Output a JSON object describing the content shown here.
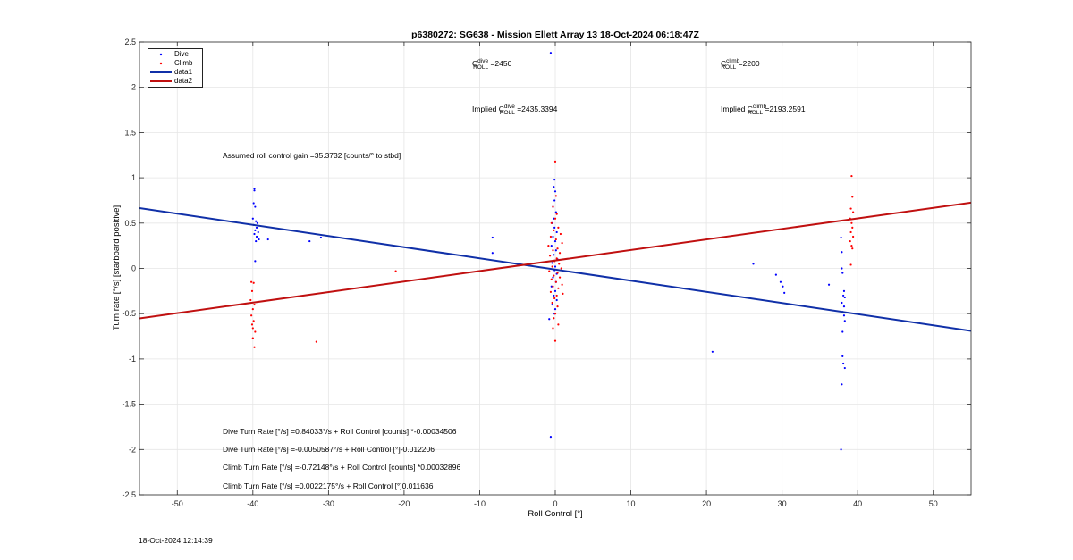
{
  "chart_data": {
    "type": "scatter",
    "title": "p6380272: SG638 - Mission Ellett Array 13 18-Oct-2024 06:18:47Z",
    "xlabel": "Roll Control [°]",
    "ylabel": "Turn rate [°/s] [starboard positive]",
    "xlim": [
      -55,
      55
    ],
    "ylim": [
      -2.5,
      2.5
    ],
    "xticks": [
      -50,
      -40,
      -30,
      -20,
      -10,
      0,
      10,
      20,
      30,
      40,
      50
    ],
    "yticks": [
      -2.5,
      -2,
      -1.5,
      -1,
      -0.5,
      0,
      0.5,
      1,
      1.5,
      2,
      2.5
    ],
    "grid": true,
    "legend_placement": "top-left",
    "legend": [
      "Dive",
      "Climb",
      "data1",
      "data2"
    ],
    "colors": {
      "dive": "#0000ff",
      "climb": "#ff0000",
      "data1": "#1030a8",
      "data2": "#c01010"
    },
    "series": [
      {
        "name": "Dive",
        "type": "scatter",
        "points": [
          [
            -39.8,
            0.88
          ],
          [
            -39.8,
            0.86
          ],
          [
            -39.9,
            0.72
          ],
          [
            -39.7,
            0.68
          ],
          [
            -40.0,
            0.55
          ],
          [
            -39.6,
            0.52
          ],
          [
            -39.4,
            0.5
          ],
          [
            -39.9,
            0.48
          ],
          [
            -39.5,
            0.45
          ],
          [
            -39.7,
            0.42
          ],
          [
            -39.3,
            0.4
          ],
          [
            -39.8,
            0.38
          ],
          [
            -39.5,
            0.35
          ],
          [
            -39.2,
            0.32
          ],
          [
            -39.6,
            0.3
          ],
          [
            -38.0,
            0.32
          ],
          [
            -39.7,
            0.08
          ],
          [
            -32.5,
            0.3
          ],
          [
            -31.0,
            0.34
          ],
          [
            -8.3,
            0.34
          ],
          [
            -8.3,
            0.17
          ],
          [
            -0.6,
            2.38
          ],
          [
            -0.1,
            0.98
          ],
          [
            -0.2,
            0.9
          ],
          [
            0.0,
            0.85
          ],
          [
            -0.1,
            0.75
          ],
          [
            -0.3,
            0.68
          ],
          [
            0.1,
            0.62
          ],
          [
            -0.2,
            0.55
          ],
          [
            -0.4,
            0.5
          ],
          [
            -0.1,
            0.45
          ],
          [
            0.2,
            0.4
          ],
          [
            -0.3,
            0.35
          ],
          [
            0.0,
            0.3
          ],
          [
            -0.5,
            0.25
          ],
          [
            0.1,
            0.2
          ],
          [
            -0.2,
            0.15
          ],
          [
            0.3,
            0.1
          ],
          [
            -0.4,
            0.06
          ],
          [
            0.0,
            0.02
          ],
          [
            -0.1,
            -0.02
          ],
          [
            0.2,
            -0.06
          ],
          [
            -0.3,
            -0.1
          ],
          [
            0.1,
            -0.15
          ],
          [
            -0.5,
            -0.2
          ],
          [
            0.0,
            -0.25
          ],
          [
            -0.2,
            -0.3
          ],
          [
            0.2,
            -0.35
          ],
          [
            -0.4,
            -0.4
          ],
          [
            0.0,
            -0.45
          ],
          [
            -0.1,
            -0.5
          ],
          [
            -0.8,
            -0.56
          ],
          [
            -0.6,
            -1.86
          ],
          [
            20.8,
            -0.92
          ],
          [
            26.2,
            0.05
          ],
          [
            29.2,
            -0.07
          ],
          [
            29.8,
            -0.15
          ],
          [
            30.1,
            -0.2
          ],
          [
            30.3,
            -0.27
          ],
          [
            36.2,
            -0.18
          ],
          [
            37.8,
            0.34
          ],
          [
            37.9,
            0.18
          ],
          [
            37.9,
            0.0
          ],
          [
            38.0,
            -0.05
          ],
          [
            38.2,
            -0.25
          ],
          [
            38.1,
            -0.3
          ],
          [
            38.3,
            -0.32
          ],
          [
            37.9,
            -0.38
          ],
          [
            38.2,
            -0.42
          ],
          [
            38.0,
            -0.48
          ],
          [
            38.2,
            -0.52
          ],
          [
            38.3,
            -0.58
          ],
          [
            38.0,
            -0.7
          ],
          [
            38.0,
            -0.97
          ],
          [
            38.1,
            -1.05
          ],
          [
            38.3,
            -1.1
          ],
          [
            37.9,
            -1.28
          ],
          [
            37.8,
            -2.0
          ]
        ]
      },
      {
        "name": "Climb",
        "type": "scatter",
        "points": [
          [
            -40.2,
            -0.15
          ],
          [
            -39.9,
            -0.16
          ],
          [
            -40.1,
            -0.25
          ],
          [
            -40.3,
            -0.35
          ],
          [
            -39.8,
            -0.4
          ],
          [
            -40.0,
            -0.45
          ],
          [
            -40.2,
            -0.52
          ],
          [
            -39.9,
            -0.58
          ],
          [
            -40.1,
            -0.62
          ],
          [
            -40.0,
            -0.66
          ],
          [
            -39.7,
            -0.7
          ],
          [
            -40.0,
            -0.77
          ],
          [
            -39.8,
            -0.87
          ],
          [
            -31.6,
            -0.81
          ],
          [
            -21.1,
            -0.03
          ],
          [
            0.0,
            1.18
          ],
          [
            0.1,
            0.8
          ],
          [
            -0.3,
            0.68
          ],
          [
            0.2,
            0.6
          ],
          [
            0.0,
            0.55
          ],
          [
            -0.5,
            0.5
          ],
          [
            0.4,
            0.45
          ],
          [
            -0.2,
            0.42
          ],
          [
            0.7,
            0.38
          ],
          [
            -0.6,
            0.35
          ],
          [
            0.1,
            0.32
          ],
          [
            0.9,
            0.28
          ],
          [
            -0.9,
            0.25
          ],
          [
            0.3,
            0.22
          ],
          [
            -0.3,
            0.2
          ],
          [
            0.6,
            0.17
          ],
          [
            -0.7,
            0.14
          ],
          [
            0.2,
            0.11
          ],
          [
            -0.1,
            0.08
          ],
          [
            0.5,
            0.05
          ],
          [
            -0.4,
            0.02
          ],
          [
            0.8,
            0.0
          ],
          [
            -0.8,
            -0.03
          ],
          [
            0.3,
            -0.05
          ],
          [
            -0.2,
            -0.08
          ],
          [
            0.6,
            -0.1
          ],
          [
            -0.5,
            -0.12
          ],
          [
            0.1,
            -0.15
          ],
          [
            0.9,
            -0.18
          ],
          [
            -0.3,
            -0.2
          ],
          [
            0.4,
            -0.22
          ],
          [
            -0.6,
            -0.26
          ],
          [
            0.2,
            -0.3
          ],
          [
            -0.1,
            -0.33
          ],
          [
            1.0,
            -0.28
          ],
          [
            -0.4,
            -0.38
          ],
          [
            0.3,
            -0.42
          ],
          [
            0.0,
            -0.5
          ],
          [
            -0.2,
            -0.55
          ],
          [
            0.4,
            -0.62
          ],
          [
            -0.3,
            -0.66
          ],
          [
            0.0,
            -0.8
          ],
          [
            39.2,
            1.02
          ],
          [
            39.3,
            0.79
          ],
          [
            39.1,
            0.66
          ],
          [
            39.4,
            0.62
          ],
          [
            39.0,
            0.55
          ],
          [
            39.2,
            0.5
          ],
          [
            39.3,
            0.45
          ],
          [
            39.1,
            0.4
          ],
          [
            39.4,
            0.35
          ],
          [
            39.0,
            0.3
          ],
          [
            39.2,
            0.25
          ],
          [
            39.3,
            0.22
          ],
          [
            39.1,
            0.04
          ]
        ]
      },
      {
        "name": "data1",
        "type": "line",
        "x": [
          -55,
          55
        ],
        "y": [
          0.6658,
          -0.6903
        ]
      },
      {
        "name": "data2",
        "type": "line",
        "x": [
          -55,
          55
        ],
        "y": [
          -0.5519,
          0.7263
        ]
      }
    ],
    "annotations": {
      "c_dive_base": "C",
      "c_dive_sup": "dive",
      "c_dive_sub": "ROLL",
      "c_dive_value": "=2450",
      "c_climb_base": "C",
      "c_climb_sup": "climb",
      "c_climb_sub": "ROLL",
      "c_climb_value": "=2200",
      "implied_prefix": "Implied C",
      "implied_dive_value": "=2435.3394",
      "implied_climb_value": "=2193.2591",
      "gain": "Assumed roll control gain =35.3732 [counts/° to stbd]",
      "eq1": "Dive Turn Rate [°/s] =0.84033°/s + Roll Control [counts] *-0.00034506",
      "eq2": "Dive Turn Rate [°/s] =-0.0050587°/s + Roll Control [°]-0.012206",
      "eq3": "Climb Turn Rate [°/s] =-0.72148°/s + Roll Control [counts] *0.00032896",
      "eq4": "Climb Turn Rate [°/s] =0.0022175°/s + Roll Control [°]0.011636"
    },
    "footer_timestamp": "18-Oct-2024 12:14:39"
  }
}
